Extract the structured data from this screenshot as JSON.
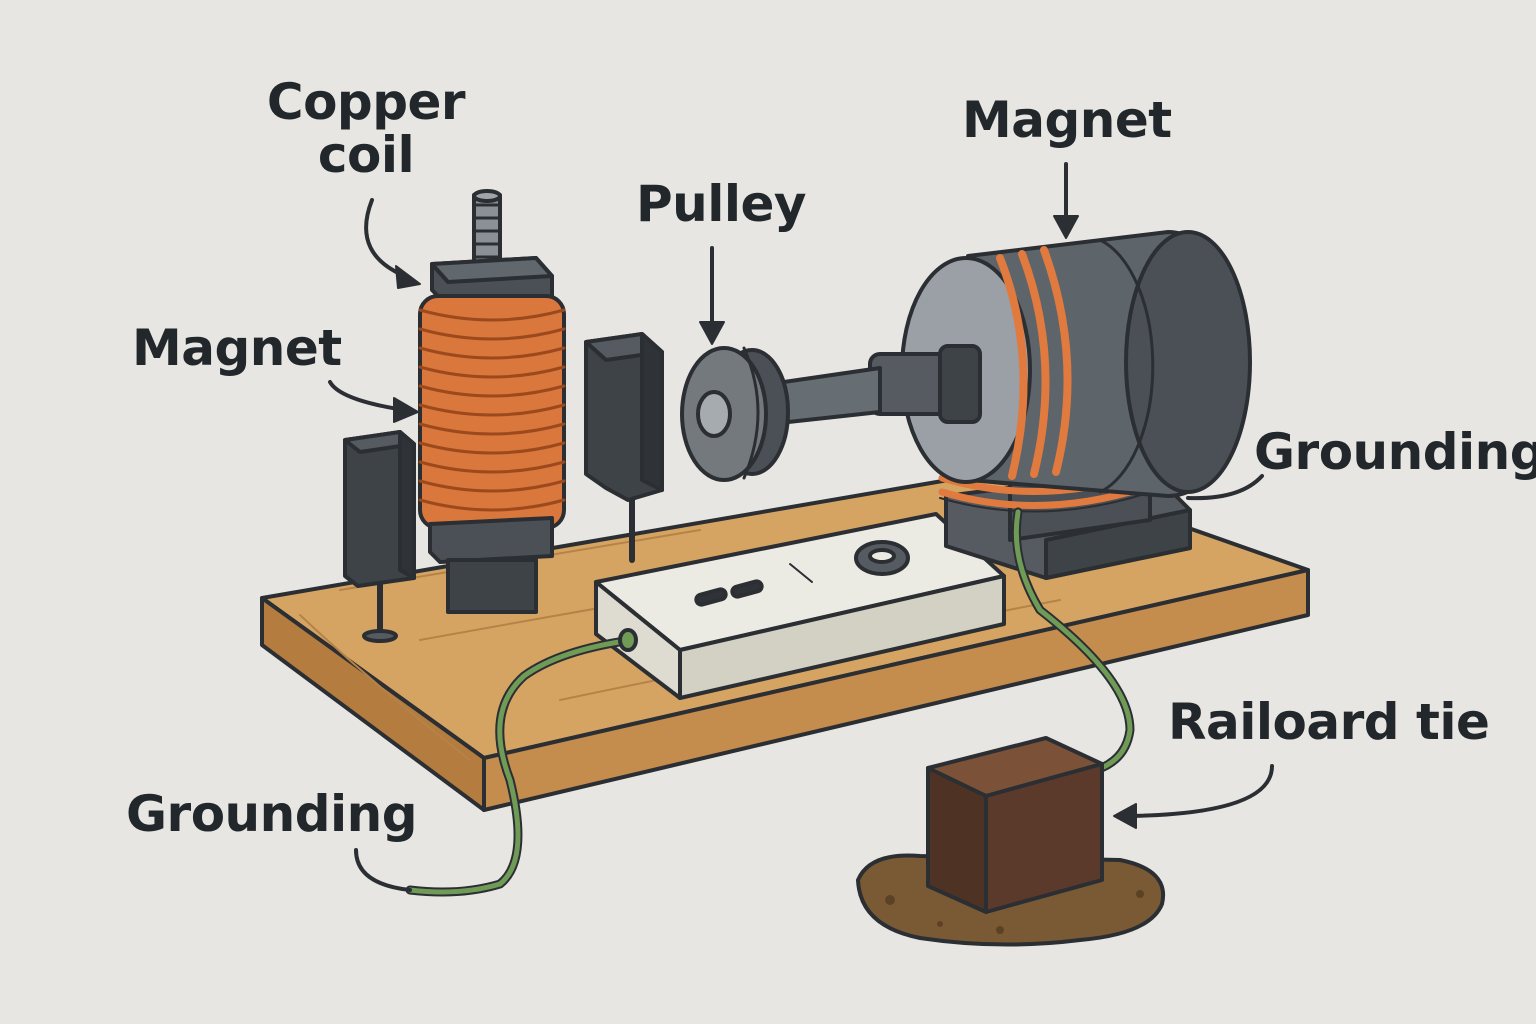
{
  "labels": {
    "copper_coil": "Copper coil",
    "magnet_left": "Magnet",
    "pulley": "Pulley",
    "magnet_right": "Magnet",
    "grounding_right": "Grounding",
    "grounding_left": "Grounding",
    "railroad_tie": "Railoard tie"
  },
  "colors": {
    "background": "#e7e6e2",
    "outline": "#2b2f33",
    "wood": "#d6a462",
    "copper": "#e07a3e",
    "metal": "#666d73",
    "wire": "#6f9b57",
    "tie": "#5b3a2b",
    "soil": "#7a5a35"
  }
}
